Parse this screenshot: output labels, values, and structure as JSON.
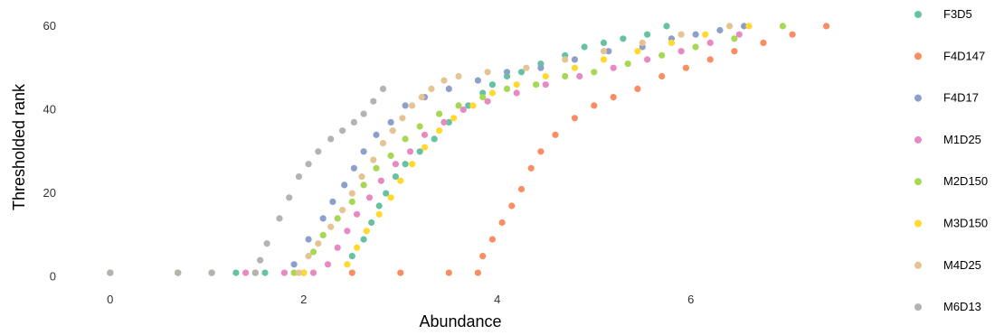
{
  "chart_data": {
    "type": "scatter",
    "title": "",
    "xlabel": "Abundance",
    "ylabel": "Thresholded rank",
    "xlim": [
      -0.25,
      7.6
    ],
    "ylim": [
      -2,
      63
    ],
    "xticks": [
      0,
      2,
      4,
      6
    ],
    "yticks": [
      0,
      20,
      40,
      60
    ],
    "xtick_labels": [
      "0",
      "2",
      "4",
      "6"
    ],
    "ytick_labels": [
      "0",
      "20",
      "40",
      "60"
    ],
    "grid": false,
    "legend_position": "right",
    "series": [
      {
        "name": "F3D5",
        "color": "#66c2a5",
        "x": [
          0.0,
          0.7,
          1.05,
          1.3,
          1.6,
          2.0,
          2.5,
          2.62,
          2.7,
          2.78,
          2.85,
          2.95,
          3.05,
          3.2,
          3.35,
          3.5,
          3.7,
          3.85,
          3.95,
          4.1,
          4.25,
          4.45,
          4.7,
          4.9,
          5.1,
          5.3,
          5.55,
          5.75
        ],
        "y": [
          1,
          1,
          1,
          1,
          1,
          1,
          5,
          9,
          13,
          17,
          20,
          24,
          27,
          30,
          33,
          37,
          41,
          44,
          46,
          48,
          49,
          51,
          53,
          55,
          56,
          57,
          58,
          60
        ]
      },
      {
        "name": "F4D147",
        "color": "#fc8d62",
        "x": [
          0.0,
          0.7,
          1.05,
          1.5,
          2.0,
          2.5,
          3.0,
          3.5,
          3.8,
          3.85,
          3.95,
          4.05,
          4.15,
          4.25,
          4.35,
          4.45,
          4.6,
          4.8,
          5.0,
          5.2,
          5.45,
          5.7,
          5.95,
          6.2,
          6.45,
          6.75,
          7.05,
          7.4
        ],
        "y": [
          1,
          1,
          1,
          1,
          1,
          1,
          1,
          1,
          1,
          5,
          9,
          13,
          17,
          21,
          26,
          30,
          34,
          38,
          41,
          43,
          45,
          48,
          50,
          52,
          54,
          56,
          58,
          60
        ]
      },
      {
        "name": "F4D17",
        "color": "#8da0cb",
        "x": [
          0.0,
          0.7,
          1.05,
          1.5,
          1.9,
          2.05,
          2.2,
          2.3,
          2.42,
          2.52,
          2.62,
          2.75,
          2.9,
          3.05,
          3.25,
          3.5,
          3.8,
          4.1,
          4.45,
          4.8,
          5.15,
          5.5,
          5.8,
          6.05,
          6.3,
          6.55
        ],
        "y": [
          1,
          1,
          1,
          1,
          3,
          9,
          14,
          18,
          22,
          26,
          30,
          34,
          37,
          41,
          43,
          45,
          47,
          49,
          50,
          52,
          54,
          55,
          57,
          58,
          59,
          60
        ]
      },
      {
        "name": "M1D25",
        "color": "#e78ac3",
        "x": [
          0.0,
          0.7,
          1.05,
          1.4,
          1.8,
          2.1,
          2.25,
          2.35,
          2.45,
          2.55,
          2.68,
          2.8,
          2.95,
          3.1,
          3.25,
          3.45,
          3.65,
          3.9,
          4.2,
          4.5,
          4.85,
          5.2,
          5.55,
          5.9,
          6.2,
          6.5
        ],
        "y": [
          1,
          1,
          1,
          1,
          1,
          1,
          3,
          7,
          11,
          15,
          19,
          23,
          27,
          30,
          34,
          37,
          40,
          42,
          44,
          46,
          48,
          50,
          52,
          54,
          56,
          58
        ]
      },
      {
        "name": "M2D150",
        "color": "#a6d854",
        "x": [
          0.0,
          0.7,
          1.05,
          1.5,
          1.9,
          2.1,
          2.2,
          2.35,
          2.5,
          2.62,
          2.75,
          2.9,
          3.05,
          3.2,
          3.4,
          3.6,
          3.85,
          4.1,
          4.4,
          4.7,
          5.0,
          5.35,
          5.7,
          6.05,
          6.45,
          6.95
        ],
        "y": [
          1,
          1,
          1,
          1,
          1,
          6,
          10,
          14,
          18,
          22,
          26,
          29,
          33,
          36,
          39,
          41,
          43,
          45,
          46,
          48,
          49,
          51,
          53,
          55,
          57,
          60
        ]
      },
      {
        "name": "M3D150",
        "color": "#ffd92f",
        "x": [
          0.0,
          0.7,
          1.05,
          1.5,
          2.0,
          2.45,
          2.55,
          2.65,
          2.78,
          2.9,
          3.0,
          3.12,
          3.25,
          3.4,
          3.55,
          3.75,
          3.95,
          4.2,
          4.5,
          4.8,
          5.1,
          5.45,
          5.8,
          6.15,
          6.6
        ],
        "y": [
          1,
          1,
          1,
          1,
          1,
          3,
          7,
          11,
          15,
          19,
          23,
          27,
          31,
          35,
          38,
          41,
          44,
          46,
          48,
          50,
          52,
          54,
          56,
          58,
          60
        ]
      },
      {
        "name": "M4D25",
        "color": "#e5c494",
        "x": [
          0.0,
          0.7,
          1.05,
          1.5,
          1.95,
          2.05,
          2.15,
          2.28,
          2.4,
          2.5,
          2.6,
          2.72,
          2.82,
          2.92,
          3.02,
          3.12,
          3.22,
          3.32,
          3.45,
          3.6,
          3.9,
          4.3,
          4.7,
          5.1,
          5.5,
          5.9,
          6.4
        ],
        "y": [
          1,
          1,
          1,
          1,
          1,
          5,
          8,
          12,
          16,
          20,
          24,
          28,
          32,
          35,
          38,
          41,
          43,
          45,
          47,
          48,
          49,
          50,
          52,
          54,
          56,
          58,
          60
        ]
      },
      {
        "name": "M6D13",
        "color": "#b3b3b3",
        "x": [
          0.0,
          0.7,
          1.05,
          1.5,
          1.55,
          1.62,
          1.75,
          1.85,
          1.95,
          2.05,
          2.15,
          2.28,
          2.4,
          2.52,
          2.62,
          2.72,
          2.82
        ],
        "y": [
          1,
          1,
          1,
          1,
          4,
          8,
          14,
          19,
          24,
          27,
          30,
          33,
          35,
          37,
          39,
          42,
          45
        ]
      }
    ]
  }
}
